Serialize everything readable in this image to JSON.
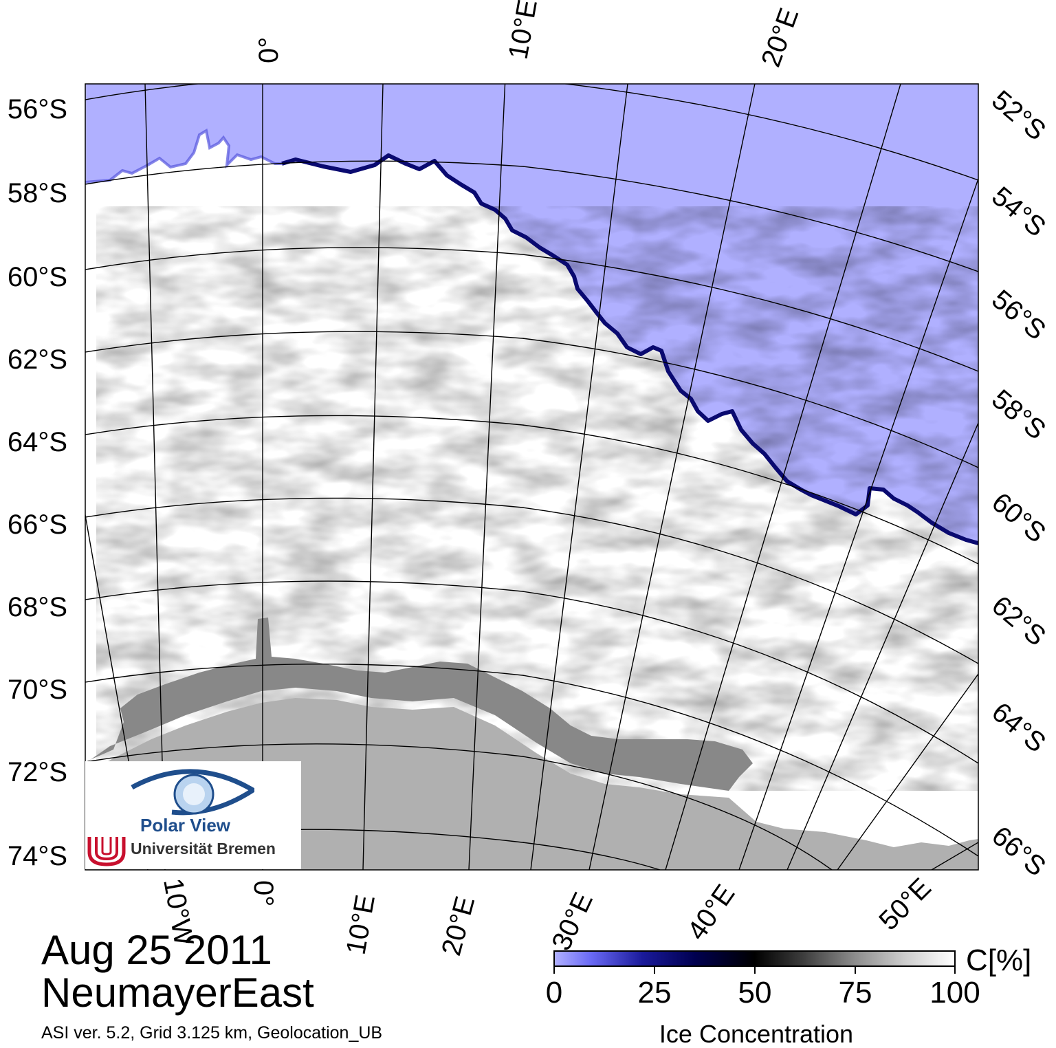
{
  "map": {
    "parallels": [
      "52°S",
      "54°S",
      "56°S",
      "58°S",
      "60°S",
      "62°S",
      "64°S",
      "66°S",
      "68°S",
      "70°S",
      "72°S",
      "74°S"
    ],
    "meridians": [
      "0°",
      "10°E",
      "20°E",
      "30°E",
      "40°E",
      "50°E",
      "10°W"
    ],
    "left_parallel_labels": [
      "56°S",
      "58°S",
      "60°S",
      "62°S",
      "64°S",
      "66°S",
      "68°S",
      "70°S",
      "72°S",
      "74°S"
    ],
    "right_parallel_labels": [
      "52°S",
      "54°S",
      "56°S",
      "58°S",
      "60°S",
      "62°S",
      "64°S",
      "66°S"
    ],
    "top_meridian_labels": [
      "0°",
      "10°E",
      "20°E"
    ],
    "bottom_meridian_labels": [
      "10°W",
      "0°",
      "10°E",
      "20°E",
      "30°E",
      "40°E",
      "50°E"
    ],
    "colors": {
      "open_water": "#b0b0ff",
      "sea_ice": "#ffffff",
      "ice_shelf": "#888888",
      "land": "#b0b0b0",
      "ice_edge": "#0a0a70",
      "grid": "#000000"
    }
  },
  "title": {
    "date": "Aug 25 2011",
    "region": "NeumayerEast"
  },
  "footnote": "ASI ver. 5.2,  Grid 3.125 km, Geolocation_UB",
  "colorbar": {
    "ticks": [
      "0",
      "25",
      "50",
      "75",
      "100"
    ],
    "unit": "C[%]",
    "title": "Ice Concentration",
    "range": [
      0,
      100
    ]
  },
  "logo": {
    "product": "Polar View",
    "institution": "Universität Bremen"
  }
}
